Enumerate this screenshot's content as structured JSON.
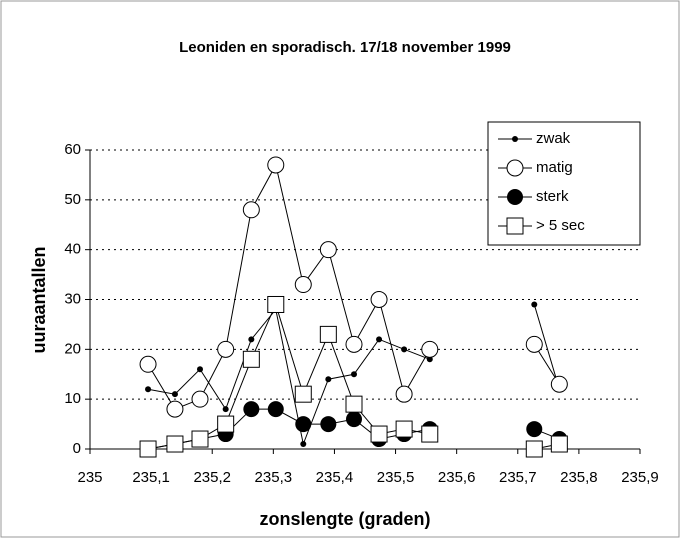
{
  "chart_data": {
    "type": "line",
    "title": "Leoniden en sporadisch. 17/18 november 1999",
    "xlabel": "zonslengte (graden)",
    "ylabel": "uuraantallen",
    "x": [
      235.095,
      235.139,
      235.18,
      235.222,
      235.264,
      235.304,
      235.349,
      235.39,
      235.432,
      235.473,
      235.514,
      235.556,
      null,
      235.727,
      235.768
    ],
    "series": [
      {
        "name": "zwak",
        "color": "#000000",
        "marker": "small-dot",
        "values": [
          12,
          11,
          16,
          8,
          22,
          28,
          1,
          14,
          15,
          22,
          20,
          18,
          null,
          29,
          12
        ]
      },
      {
        "name": "matig",
        "color": "#000000",
        "marker": "open-circle",
        "values": [
          17,
          8,
          10,
          20,
          48,
          57,
          33,
          40,
          21,
          30,
          11,
          20,
          null,
          21,
          13
        ]
      },
      {
        "name": "sterk",
        "color": "#000000",
        "marker": "filled-circle",
        "values": [
          0,
          1,
          2,
          3,
          8,
          8,
          5,
          5,
          6,
          2,
          3,
          4,
          null,
          4,
          2
        ]
      },
      {
        "name": "> 5 sec",
        "color": "#000000",
        "marker": "open-square",
        "values": [
          0,
          1,
          2,
          5,
          18,
          29,
          11,
          23,
          9,
          3,
          4,
          3,
          null,
          0,
          1
        ]
      }
    ],
    "xlim": [
      235,
      235.9
    ],
    "xticks": [
      235,
      {
        "value": 235.1,
        "label": "235,1"
      },
      {
        "value": 235.2,
        "label": "235,2"
      },
      {
        "value": 235.3,
        "label": "235,3"
      },
      {
        "value": 235.4,
        "label": "235,4"
      },
      {
        "value": 235.5,
        "label": "235,5"
      },
      {
        "value": 235.6,
        "label": "235,6"
      },
      {
        "value": 235.7,
        "label": "235,7"
      },
      {
        "value": 235.8,
        "label": "235,8"
      },
      {
        "value": 235.9,
        "label": "235,9"
      }
    ],
    "ylim": [
      0,
      60
    ],
    "yticks": [
      0,
      10,
      20,
      30,
      40,
      50,
      60
    ],
    "grid": true,
    "legend": "upper right"
  }
}
